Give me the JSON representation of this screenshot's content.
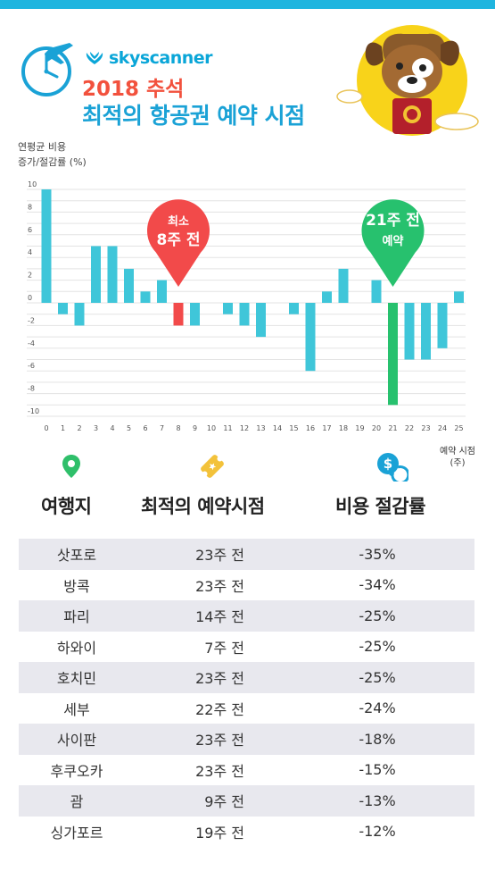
{
  "brand": {
    "name": "skyscanner"
  },
  "title": {
    "year": "2018 추석",
    "main": "최적의 항공권 예약 시점"
  },
  "chart_data": {
    "type": "bar",
    "ylabel_lines": [
      "연평균 비용",
      "증가/절감률 (%)"
    ],
    "xlabel_lines": [
      "예약 시점",
      "(주)"
    ],
    "ylim": [
      -10,
      10
    ],
    "yticks": [
      10,
      8,
      6,
      4,
      2,
      0,
      -2,
      -4,
      -6,
      -8,
      -10
    ],
    "categories": [
      "0",
      "1",
      "2",
      "3",
      "4",
      "5",
      "6",
      "7",
      "8",
      "9",
      "10",
      "11",
      "12",
      "13",
      "14",
      "15",
      "16",
      "17",
      "18",
      "19",
      "20",
      "21",
      "22",
      "23",
      "24",
      "25"
    ],
    "values": [
      10,
      -1,
      -2,
      5,
      5,
      3,
      1,
      2,
      -2,
      -2,
      0,
      -1,
      -2,
      -3,
      0,
      -1,
      -6,
      1,
      3,
      0,
      2,
      -9,
      -5,
      -5,
      -4,
      1
    ],
    "colors": {
      "default": "#3fc6d9",
      "min_cost": "#f24a4a",
      "optimal": "#27c16e",
      "grid": "#e3e3e3"
    },
    "highlights": [
      {
        "index": 8,
        "color": "#f24a4a",
        "label_lines": [
          "최소",
          "8주 전"
        ]
      },
      {
        "index": 21,
        "color": "#27c16e",
        "label_lines": [
          "21주 전",
          "예약"
        ]
      }
    ]
  },
  "table": {
    "headers": {
      "destination": "여행지",
      "best_time": "최적의 예약시점",
      "saving": "비용 절감률"
    },
    "icons": {
      "destination": "location-pin-icon",
      "best_time": "ticket-icon",
      "saving": "dollar-refresh-icon"
    },
    "rows": [
      {
        "destination": "삿포로",
        "best_time": "23주 전",
        "saving": "-35%"
      },
      {
        "destination": "방콕",
        "best_time": "23주 전",
        "saving": "-34%"
      },
      {
        "destination": "파리",
        "best_time": "14주 전",
        "saving": "-25%"
      },
      {
        "destination": "하와이",
        "best_time": "7주 전",
        "saving": "-25%"
      },
      {
        "destination": "호치민",
        "best_time": "23주 전",
        "saving": "-25%"
      },
      {
        "destination": "세부",
        "best_time": "22주 전",
        "saving": "-24%"
      },
      {
        "destination": "사이판",
        "best_time": "23주 전",
        "saving": "-18%"
      },
      {
        "destination": "후쿠오카",
        "best_time": "23주 전",
        "saving": "-15%"
      },
      {
        "destination": "괌",
        "best_time": "9주 전",
        "saving": "-13%"
      },
      {
        "destination": "싱가포르",
        "best_time": "19주 전",
        "saving": "-12%"
      }
    ]
  }
}
